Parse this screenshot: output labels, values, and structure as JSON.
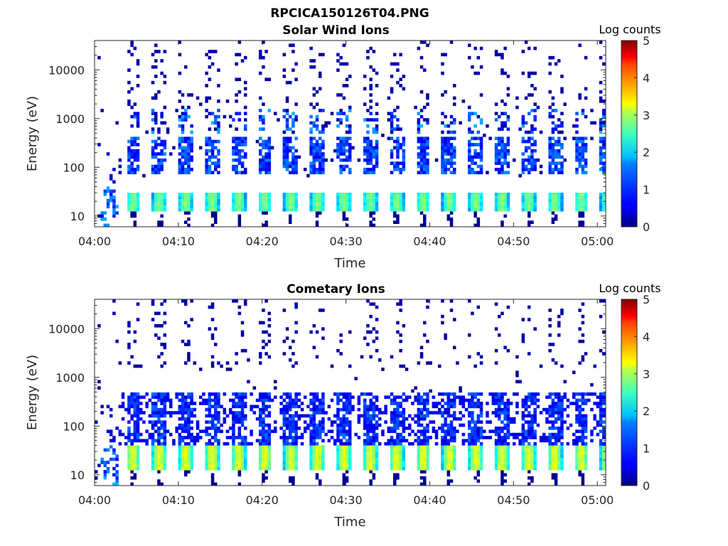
{
  "figure_title": "RPCICA150126T04.PNG",
  "chart_data": [
    {
      "type": "heatmap",
      "title": "Solar Wind Ions",
      "xlabel": "Time",
      "ylabel": "Energy (eV)",
      "x_range": [
        "04:00",
        "05:01"
      ],
      "x_ticks": [
        "04:00",
        "04:10",
        "04:20",
        "04:30",
        "04:40",
        "04:50",
        "05:00"
      ],
      "y_scale": "log",
      "y_range_ev": [
        6,
        40000
      ],
      "y_ticks": [
        "10",
        "100",
        "1000",
        "10000"
      ],
      "colorbar": {
        "label": "Log counts",
        "min": 0,
        "max": 5,
        "ticks": [
          "0",
          "1",
          "2",
          "3",
          "4",
          "5"
        ],
        "colormap": "jet"
      },
      "grid": false,
      "pattern": {
        "sweep_period_min": 3.15,
        "description_values": {
          "low_energy_band_ev": [
            13,
            30
          ],
          "low_energy_peak_log_counts": 2.5,
          "mid_energy_band_ev": [
            70,
            450
          ],
          "mid_energy_peak_log_counts": 1.6,
          "kev_band_ev": [
            500,
            1500
          ],
          "kev_peak_log_counts": 2.0,
          "high_energy_sparse_log_counts": 0.2
        }
      }
    },
    {
      "type": "heatmap",
      "title": "Cometary Ions",
      "xlabel": "Time",
      "ylabel": "Energy (eV)",
      "x_range": [
        "04:00",
        "05:01"
      ],
      "x_ticks": [
        "04:00",
        "04:10",
        "04:20",
        "04:30",
        "04:40",
        "04:50",
        "05:00"
      ],
      "y_scale": "log",
      "y_range_ev": [
        6,
        40000
      ],
      "y_ticks": [
        "10",
        "100",
        "1000",
        "10000"
      ],
      "colorbar": {
        "label": "Log counts",
        "min": 0,
        "max": 5,
        "ticks": [
          "0",
          "1",
          "2",
          "3",
          "4",
          "5"
        ],
        "colormap": "jet"
      },
      "grid": false,
      "pattern": {
        "sweep_period_min": 3.15,
        "description_values": {
          "low_energy_band_ev": [
            12,
            40
          ],
          "low_energy_peak_log_counts": 3.0,
          "mid_energy_band_ev": [
            40,
            500
          ],
          "mid_energy_peak_log_counts": 1.4,
          "high_energy_sparse_log_counts": 0.2
        }
      }
    }
  ]
}
